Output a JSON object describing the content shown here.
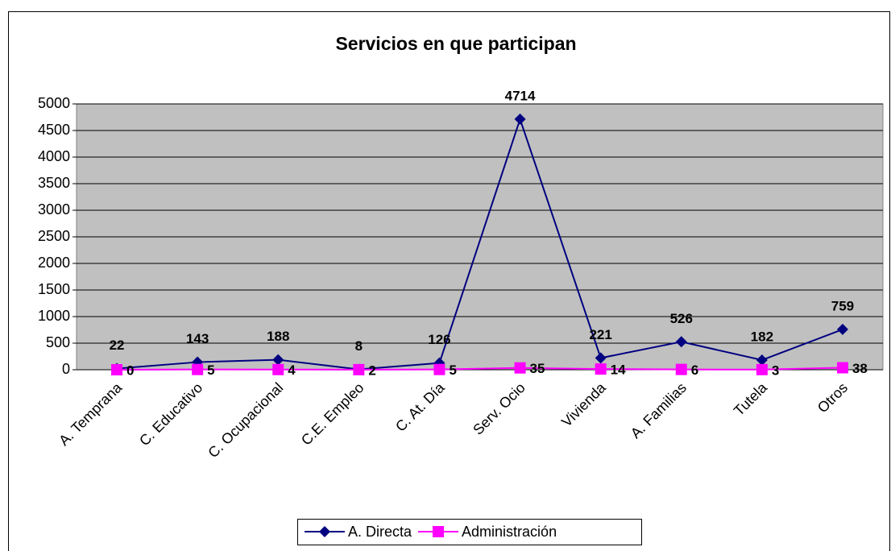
{
  "chart_data": {
    "type": "line",
    "title": "Servicios en que participan",
    "categories": [
      "A. Temprana",
      "C. Educativo",
      "C. Ocupacional",
      "C.E. Empleo",
      "C. At. Día",
      "Serv. Ocio",
      "Vivienda",
      "A. Familias",
      "Tutela",
      "Otros"
    ],
    "series": [
      {
        "name": "A. Directa",
        "color": "#000080",
        "marker": "diamond",
        "values": [
          22,
          143,
          188,
          8,
          126,
          4714,
          221,
          526,
          182,
          759
        ]
      },
      {
        "name": "Administración",
        "color": "#ff00ff",
        "marker": "square",
        "values": [
          0,
          5,
          4,
          2,
          5,
          35,
          14,
          6,
          3,
          38
        ]
      }
    ],
    "ylim": [
      0,
      5000
    ],
    "yticks": [
      0,
      500,
      1000,
      1500,
      2000,
      2500,
      3000,
      3500,
      4000,
      4500,
      5000
    ],
    "grid": true,
    "legend": "bottom"
  }
}
